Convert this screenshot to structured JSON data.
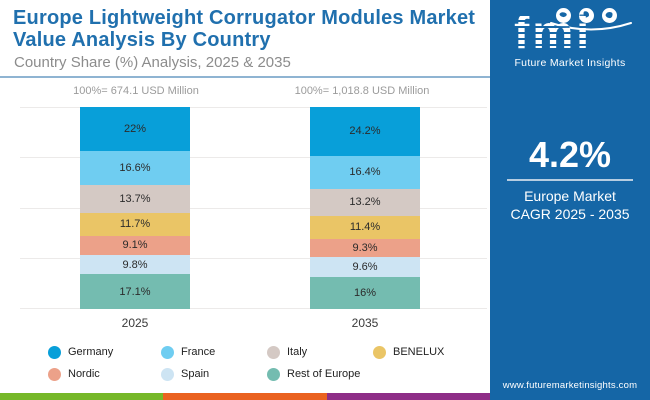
{
  "header": {
    "title_line1": "Europe Lightweight Corrugator Modules Market",
    "title_line2": "Value Analysis By Country",
    "subtitle": "Country Share (%) Analysis, 2025 & 2035",
    "title_color": "#2070ae",
    "divider_color": "#8fb4d2"
  },
  "chart_data": {
    "type": "bar",
    "stacked": true,
    "categories": [
      "2025",
      "2035"
    ],
    "totals": [
      "100%= 674.1 USD Million",
      "100%= 1,018.8 USD Million"
    ],
    "series": [
      {
        "name": "Germany",
        "color": "#089fd9",
        "values": [
          22.0,
          24.2
        ],
        "labels": [
          "22%",
          "24.2%"
        ]
      },
      {
        "name": "France",
        "color": "#6fcdf1",
        "values": [
          16.6,
          16.4
        ],
        "labels": [
          "16.6%",
          "16.4%"
        ]
      },
      {
        "name": "Italy",
        "color": "#d4c9c4",
        "values": [
          13.7,
          13.2
        ],
        "labels": [
          "13.7%",
          "13.2%"
        ]
      },
      {
        "name": "BENELUX",
        "color": "#eac566",
        "values": [
          11.7,
          11.4
        ],
        "labels": [
          "11.7%",
          "11.4%"
        ]
      },
      {
        "name": "Nordic",
        "color": "#eca189",
        "values": [
          9.1,
          9.3
        ],
        "labels": [
          "9.1%",
          "9.3%"
        ]
      },
      {
        "name": "Spain",
        "color": "#cde4f3",
        "values": [
          9.8,
          9.6
        ],
        "labels": [
          "9.8%",
          "9.6%"
        ]
      },
      {
        "name": "Rest of Europe",
        "color": "#74bcb0",
        "values": [
          17.1,
          16.0
        ],
        "labels": [
          "17.1%",
          "16%"
        ]
      }
    ],
    "ylim": [
      0,
      100
    ],
    "grid": true,
    "legend_position": "bottom"
  },
  "side_panel": {
    "bg_color": "#1566a6",
    "logo_text": "fmi",
    "logo_subtext": "Future Market Insights",
    "cagr_value": "4.2%",
    "cagr_label_line1": "Europe Market",
    "cagr_label_line2": "CAGR 2025 - 2035",
    "website": "www.futuremarketinsights.com"
  },
  "footer_stripe_colors": [
    "#76b829",
    "#ea6220",
    "#8e2e87"
  ]
}
